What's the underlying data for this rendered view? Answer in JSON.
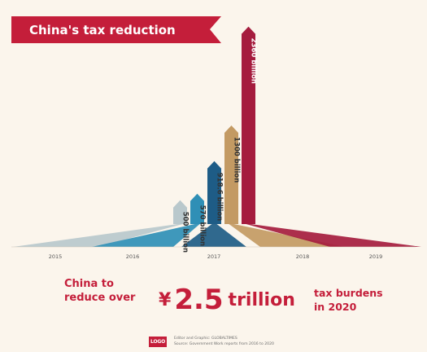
{
  "title": "China's tax reduction",
  "chart_data": {
    "type": "bar",
    "title": "China's tax reduction",
    "categories": [
      "2015",
      "2016",
      "2017",
      "2018",
      "2019"
    ],
    "values": [
      500,
      570,
      918.6,
      1300,
      2360
    ],
    "value_labels": [
      "500 billion",
      "570 billion",
      "918.6 billion",
      "1300 billion",
      "2360 billion"
    ],
    "unit": "billion yuan",
    "colors": [
      "#b9c8cc",
      "#2f8fb6",
      "#1e5c86",
      "#c39a63",
      "#a51c3e"
    ],
    "ylim": [
      0,
      2400
    ],
    "grid": false,
    "legend": "none"
  },
  "footer": {
    "left_text": [
      "China to",
      "reduce over"
    ],
    "currency": "¥",
    "amount": "2.5",
    "amount_unit": "trillion",
    "right_text": [
      "tax burdens",
      "in 2020"
    ]
  },
  "logo_text": "LOGO",
  "credits": [
    "Editor and Graphic: GLOBALTIMES",
    "Source: Government Work reports from 2016 to 2020"
  ]
}
